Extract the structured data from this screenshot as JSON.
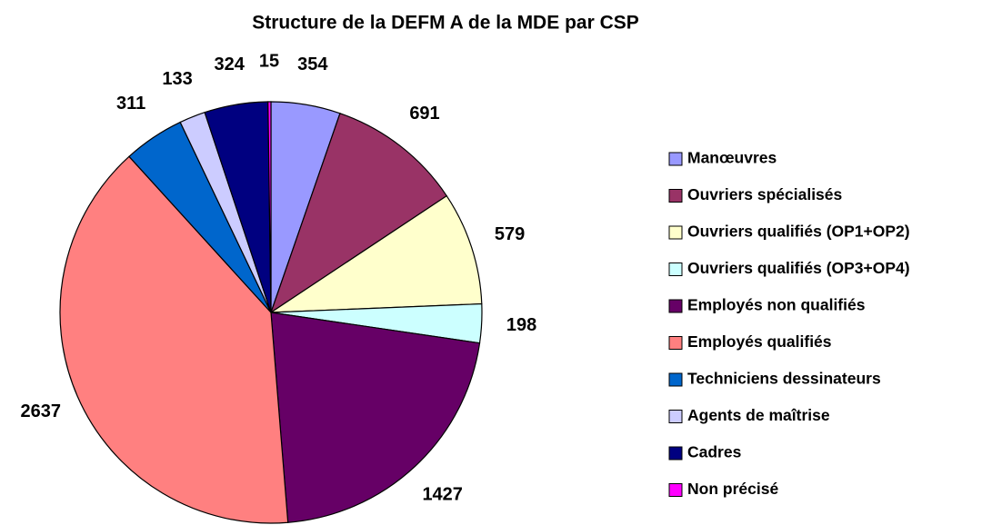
{
  "chart_data": {
    "type": "pie",
    "title": "Structure de la DEFM A de la MDE par CSP",
    "categories": [
      "Manœuvres",
      "Ouvriers spécialisés",
      "Ouvriers qualifiés (OP1+OP2)",
      "Ouvriers qualifiés (OP3+OP4)",
      "Employés non qualifiés",
      "Employés qualifiés",
      "Techniciens dessinateurs",
      "Agents de maîtrise",
      "Cadres",
      "Non précisé"
    ],
    "values": [
      354,
      691,
      579,
      198,
      1427,
      2637,
      311,
      133,
      324,
      15
    ],
    "colors": [
      "#9999ff",
      "#993366",
      "#ffffcc",
      "#ccffff",
      "#660066",
      "#ff8080",
      "#0066cc",
      "#ccccff",
      "#000080",
      "#ff00ff"
    ],
    "legend": "right"
  }
}
